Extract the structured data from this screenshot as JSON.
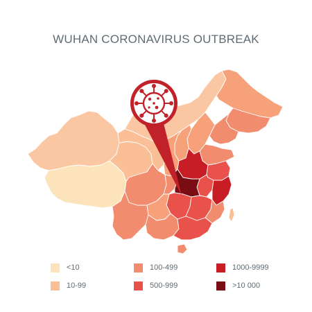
{
  "title": "WUHAN CORONAVIRUS OUTBREAK",
  "map": {
    "subject": "China provinces choropleth of confirmed cases",
    "highlight": "Hubei (Wuhan)",
    "marker_icon": "virus-icon",
    "colors": {
      "lt10": "#fde3bc",
      "10_99": "#fbbf98",
      "100_499": "#f28c6e",
      "500_999": "#e8524b",
      "1000_9999": "#c91d26",
      ">10000": "#7a0c14",
      "border": "#ffffff"
    }
  },
  "legend": [
    {
      "label": "<10",
      "color": "#fde3bc"
    },
    {
      "label": "10-99",
      "color": "#fbbf98"
    },
    {
      "label": "100-499",
      "color": "#f28c6e"
    },
    {
      "label": "500-999",
      "color": "#e8524b"
    },
    {
      "label": "1000-9999",
      "color": "#c91d26"
    },
    {
      "label": ">10 000",
      "color": "#7a0c14"
    }
  ]
}
